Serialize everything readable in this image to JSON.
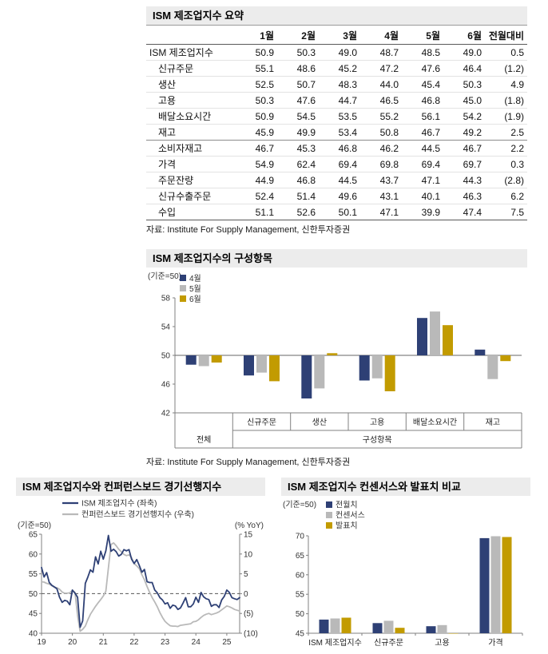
{
  "colors": {
    "navy": "#2e4075",
    "gray": "#b9b9b9",
    "gold": "#c29b00",
    "band_bg": "#ececec",
    "axis": "#808080"
  },
  "summary_table": {
    "title": "ISM 제조업지수 요약",
    "source": "자료: Institute For Supply Management, 신한투자증권",
    "columns": [
      "",
      "1월",
      "2월",
      "3월",
      "4월",
      "5월",
      "6월",
      "전월대비"
    ],
    "group_separator_after_row": 5,
    "rows": [
      {
        "label": "ISM 제조업지수",
        "indent": false,
        "values": [
          "50.9",
          "50.3",
          "49.0",
          "48.7",
          "48.5",
          "49.0",
          "0.5"
        ]
      },
      {
        "label": "신규주문",
        "indent": true,
        "values": [
          "55.1",
          "48.6",
          "45.2",
          "47.2",
          "47.6",
          "46.4",
          "(1.2)"
        ]
      },
      {
        "label": "생산",
        "indent": true,
        "values": [
          "52.5",
          "50.7",
          "48.3",
          "44.0",
          "45.4",
          "50.3",
          "4.9"
        ]
      },
      {
        "label": "고용",
        "indent": true,
        "values": [
          "50.3",
          "47.6",
          "44.7",
          "46.5",
          "46.8",
          "45.0",
          "(1.8)"
        ]
      },
      {
        "label": "배달소요시간",
        "indent": true,
        "values": [
          "50.9",
          "54.5",
          "53.5",
          "55.2",
          "56.1",
          "54.2",
          "(1.9)"
        ]
      },
      {
        "label": "재고",
        "indent": true,
        "values": [
          "45.9",
          "49.9",
          "53.4",
          "50.8",
          "46.7",
          "49.2",
          "2.5"
        ]
      },
      {
        "label": "소비자재고",
        "indent": true,
        "values": [
          "46.7",
          "45.3",
          "46.8",
          "46.2",
          "44.5",
          "46.7",
          "2.2"
        ]
      },
      {
        "label": "가격",
        "indent": true,
        "values": [
          "54.9",
          "62.4",
          "69.4",
          "69.8",
          "69.4",
          "69.7",
          "0.3"
        ]
      },
      {
        "label": "주문잔량",
        "indent": true,
        "values": [
          "44.9",
          "46.8",
          "44.5",
          "43.7",
          "47.1",
          "44.3",
          "(2.8)"
        ]
      },
      {
        "label": "신규수출주문",
        "indent": true,
        "values": [
          "52.4",
          "51.4",
          "49.6",
          "43.1",
          "40.1",
          "46.3",
          "6.2"
        ]
      },
      {
        "label": "수입",
        "indent": true,
        "values": [
          "51.1",
          "52.6",
          "50.1",
          "47.1",
          "39.9",
          "47.4",
          "7.5"
        ]
      }
    ]
  },
  "chart_data": [
    {
      "id": "components",
      "type": "bar",
      "title": "ISM 제조업지수의 구성항목",
      "axis_note": "(기준=50)",
      "source": "자료: Institute For Supply Management, 신한투자증권",
      "baseline": 50,
      "ylim": [
        42,
        58
      ],
      "yticks": [
        42,
        46,
        50,
        54,
        58
      ],
      "categories": [
        "전체",
        "신규주문",
        "생산",
        "고용",
        "배달소요시간",
        "재고"
      ],
      "group_label": "구성항목",
      "legend_position": "top-left",
      "series": [
        {
          "name": "4월",
          "color_key": "navy",
          "values": [
            48.7,
            47.2,
            44.0,
            46.5,
            55.2,
            50.8
          ]
        },
        {
          "name": "5월",
          "color_key": "gray",
          "values": [
            48.5,
            47.6,
            45.4,
            46.8,
            56.1,
            46.7
          ]
        },
        {
          "name": "6월",
          "color_key": "gold",
          "values": [
            49.0,
            46.4,
            50.3,
            45.0,
            54.2,
            49.2
          ]
        }
      ]
    },
    {
      "id": "ism_vs_lei",
      "type": "line",
      "title": "ISM 제조업지수와 컨퍼런스보드 경기선행지수",
      "left_axis_note": "(기준=50)",
      "right_axis_note": "(% YoY)",
      "left_ylim": [
        40,
        65
      ],
      "left_yticks": [
        40,
        45,
        50,
        55,
        60,
        65
      ],
      "right_ylim": [
        -10,
        15
      ],
      "right_ytick_values": [
        -10,
        -5,
        0,
        5,
        10,
        15
      ],
      "right_ytick_labels": [
        "(10)",
        "(5)",
        "0",
        "5",
        "10",
        "15"
      ],
      "dashed_at": 50,
      "x_labels": [
        "19",
        "20",
        "21",
        "22",
        "23",
        "24",
        "25"
      ],
      "x_label_every_months": 12,
      "legend_position": "top",
      "series": [
        {
          "name": "ISM 제조업지수 (좌축)",
          "axis": "left",
          "color_key": "navy",
          "values": [
            56.6,
            54.2,
            55.3,
            52.8,
            52.1,
            51.7,
            51.2,
            49.1,
            47.8,
            48.3,
            48.1,
            47.2,
            50.9,
            50.1,
            49.1,
            41.5,
            43.1,
            52.6,
            54.2,
            56.0,
            55.4,
            59.3,
            57.5,
            60.7,
            58.7,
            60.8,
            64.7,
            60.7,
            61.2,
            60.6,
            59.5,
            59.9,
            61.1,
            60.8,
            61.1,
            58.7,
            57.6,
            58.6,
            57.1,
            55.4,
            56.1,
            53.0,
            52.8,
            52.8,
            50.9,
            50.2,
            49.0,
            48.4,
            47.4,
            47.7,
            46.3,
            47.1,
            46.9,
            46.0,
            46.4,
            47.6,
            49.0,
            46.7,
            46.7,
            47.4,
            49.1,
            47.8,
            50.3,
            49.2,
            48.7,
            48.5,
            46.8,
            47.2,
            47.2,
            46.5,
            48.4,
            49.3,
            50.9,
            50.3,
            49.0,
            48.7,
            48.5,
            49.0
          ]
        },
        {
          "name": "컨퍼런스보드 경기선행지수 (우축)",
          "axis": "right",
          "color_key": "gray",
          "values": [
            3.0,
            2.9,
            2.6,
            2.4,
            2.0,
            1.6,
            1.5,
            1.1,
            0.4,
            0.1,
            0.1,
            0.2,
            0.8,
            0.3,
            -5.5,
            -9.5,
            -9.0,
            -8.2,
            -6.6,
            -5.2,
            -4.2,
            -3.2,
            -2.3,
            -1.5,
            -0.6,
            0.6,
            6.5,
            12.4,
            12.8,
            12.1,
            11.2,
            10.6,
            9.9,
            9.6,
            9.8,
            9.1,
            7.6,
            7.0,
            6.3,
            4.8,
            3.5,
            1.8,
            0.3,
            -1.0,
            -2.1,
            -3.3,
            -4.8,
            -6.0,
            -7.0,
            -7.6,
            -8.1,
            -8.2,
            -8.2,
            -8.3,
            -8.0,
            -7.9,
            -7.8,
            -7.7,
            -7.6,
            -7.1,
            -7.0,
            -6.6,
            -6.0,
            -5.5,
            -5.2,
            -5.0,
            -5.3,
            -5.1,
            -4.9,
            -4.6,
            -4.1,
            -3.6,
            -3.1,
            -3.3,
            -3.6,
            -4.0,
            -4.2,
            -4.4
          ]
        }
      ]
    },
    {
      "id": "consensus",
      "type": "bar",
      "title": "ISM 제조업지수 컨센서스와 발표치 비교",
      "axis_note": "(기준=50)",
      "baseline": 45,
      "ylim": [
        45,
        70
      ],
      "yticks": [
        45,
        50,
        55,
        60,
        65,
        70
      ],
      "categories": [
        "ISM 제조업지수",
        "신규주문",
        "고용",
        "가격"
      ],
      "legend_position": "top-left",
      "series": [
        {
          "name": "전월치",
          "color_key": "navy",
          "values": [
            48.5,
            47.6,
            46.8,
            69.4
          ]
        },
        {
          "name": "컨센서스",
          "color_key": "gray",
          "values": [
            48.8,
            48.2,
            47.1,
            69.9
          ]
        },
        {
          "name": "발표치",
          "color_key": "gold",
          "values": [
            49.0,
            46.4,
            45.0,
            69.7
          ]
        }
      ]
    }
  ]
}
